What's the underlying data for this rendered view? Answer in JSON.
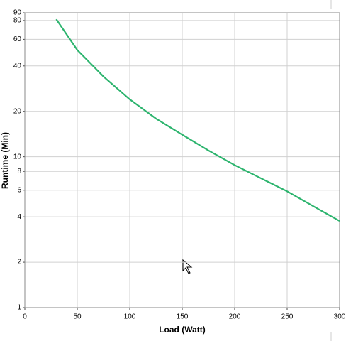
{
  "chart_data": {
    "type": "line",
    "xlabel": "Load (Watt)",
    "ylabel": "Runtime (Min)",
    "x": [
      30,
      50,
      75,
      100,
      125,
      150,
      175,
      200,
      225,
      250,
      275,
      300
    ],
    "values": [
      81.5,
      51,
      34,
      24,
      17.9,
      14,
      11,
      8.8,
      7.2,
      5.9,
      4.7,
      3.75
    ],
    "color": "#2db46e",
    "xlim": [
      0,
      300
    ],
    "xticks": [
      0,
      50,
      100,
      150,
      200,
      250,
      300
    ],
    "ylim": [
      1,
      90
    ],
    "yticks": [
      1,
      2,
      4,
      6,
      8,
      10,
      20,
      40,
      60,
      80,
      90
    ],
    "yscale": "log",
    "grid": true
  }
}
